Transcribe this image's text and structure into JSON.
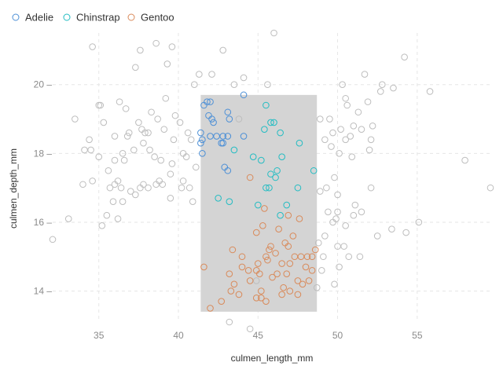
{
  "chart_data": {
    "type": "scatter",
    "xlabel": "culmen_length_mm",
    "ylabel": "culmen_depth_mm",
    "xlim": [
      32.1,
      59.6
    ],
    "ylim": [
      13.1,
      21.5
    ],
    "x_ticks": [
      35,
      40,
      45,
      50,
      55
    ],
    "y_ticks": [
      14,
      16,
      18,
      20
    ],
    "grid": true,
    "legend_placement": "top-left",
    "selection": {
      "x": [
        41.4,
        48.7
      ],
      "y": [
        13.4,
        19.7
      ],
      "color": "#d4d4d4"
    },
    "colors": {
      "Adelie": "#4c8fd6",
      "Chinstrap": "#22bcc2",
      "Gentoo": "#d98a5a",
      "unselected": "#bdbdbd"
    },
    "series": [
      {
        "name": "Adelie",
        "points": [
          [
            41.6,
            19.4
          ],
          [
            41.8,
            19.5
          ],
          [
            42.0,
            19.5
          ],
          [
            41.9,
            19.1
          ],
          [
            42.1,
            19.0
          ],
          [
            42.2,
            18.9
          ],
          [
            42.0,
            18.5
          ],
          [
            41.5,
            18.4
          ],
          [
            41.4,
            18.3
          ],
          [
            42.4,
            18.5
          ],
          [
            42.8,
            18.5
          ],
          [
            43.1,
            18.5
          ],
          [
            43.1,
            19.2
          ],
          [
            43.2,
            19.0
          ],
          [
            41.5,
            18.0
          ],
          [
            41.4,
            18.6
          ],
          [
            42.7,
            18.3
          ],
          [
            44.1,
            18.5
          ],
          [
            43.1,
            17.5
          ],
          [
            42.9,
            17.6
          ],
          [
            44.1,
            19.7
          ],
          [
            42.8,
            18.3
          ]
        ]
      },
      {
        "name": "Chinstrap",
        "points": [
          [
            45.5,
            19.4
          ],
          [
            46.0,
            18.9
          ],
          [
            45.8,
            18.9
          ],
          [
            45.4,
            18.7
          ],
          [
            46.4,
            18.6
          ],
          [
            46.5,
            17.9
          ],
          [
            45.2,
            17.8
          ],
          [
            46.2,
            17.5
          ],
          [
            46.1,
            17.3
          ],
          [
            45.5,
            17.0
          ],
          [
            45.7,
            17.0
          ],
          [
            47.5,
            17.0
          ],
          [
            46.8,
            16.5
          ],
          [
            48.5,
            17.5
          ],
          [
            43.5,
            18.1
          ],
          [
            45.0,
            16.5
          ],
          [
            42.5,
            16.7
          ],
          [
            43.2,
            16.6
          ],
          [
            44.7,
            17.9
          ],
          [
            45.8,
            17.4
          ],
          [
            47.6,
            18.3
          ],
          [
            46.4,
            16.2
          ]
        ]
      },
      {
        "name": "Gentoo",
        "points": [
          [
            41.6,
            14.7
          ],
          [
            42.0,
            13.5
          ],
          [
            42.7,
            13.7
          ],
          [
            43.3,
            14.0
          ],
          [
            43.2,
            14.5
          ],
          [
            43.5,
            14.2
          ],
          [
            44.0,
            14.7
          ],
          [
            44.5,
            14.3
          ],
          [
            44.9,
            13.8
          ],
          [
            45.2,
            13.8
          ],
          [
            45.5,
            13.7
          ],
          [
            45.0,
            14.8
          ],
          [
            45.5,
            15.0
          ],
          [
            45.9,
            14.4
          ],
          [
            46.1,
            15.1
          ],
          [
            46.2,
            14.5
          ],
          [
            46.5,
            14.8
          ],
          [
            46.8,
            14.5
          ],
          [
            47.0,
            14.8
          ],
          [
            47.3,
            15.0
          ],
          [
            47.5,
            14.3
          ],
          [
            47.7,
            15.0
          ],
          [
            48.0,
            14.7
          ],
          [
            48.2,
            14.3
          ],
          [
            48.4,
            15.0
          ],
          [
            43.4,
            15.2
          ],
          [
            44.9,
            15.7
          ],
          [
            45.3,
            15.9
          ],
          [
            45.8,
            15.3
          ],
          [
            46.3,
            15.8
          ],
          [
            46.9,
            15.3
          ],
          [
            47.2,
            15.6
          ],
          [
            47.6,
            16.1
          ],
          [
            48.1,
            15.0
          ],
          [
            48.6,
            15.2
          ],
          [
            44.4,
            14.6
          ],
          [
            45.1,
            14.5
          ],
          [
            46.6,
            14.1
          ],
          [
            47.8,
            14.2
          ],
          [
            43.8,
            13.9
          ],
          [
            44.9,
            14.6
          ],
          [
            45.7,
            15.2
          ],
          [
            46.7,
            15.4
          ],
          [
            45.4,
            16.4
          ],
          [
            46.9,
            16.2
          ],
          [
            44.5,
            17.3
          ],
          [
            47.5,
            13.9
          ],
          [
            48.4,
            14.6
          ],
          [
            45.2,
            14.0
          ],
          [
            46.5,
            13.9
          ],
          [
            44.0,
            15.0
          ],
          [
            47.0,
            14.0
          ],
          [
            45.6,
            14.9
          ]
        ]
      },
      {
        "name": "unselected",
        "points": [
          [
            32.1,
            15.5
          ],
          [
            33.1,
            16.1
          ],
          [
            33.5,
            19.0
          ],
          [
            34.0,
            17.1
          ],
          [
            34.1,
            18.1
          ],
          [
            34.4,
            18.4
          ],
          [
            34.5,
            18.1
          ],
          [
            34.6,
            17.2
          ],
          [
            34.6,
            21.1
          ],
          [
            35.0,
            17.9
          ],
          [
            35.0,
            19.4
          ],
          [
            35.1,
            19.4
          ],
          [
            35.2,
            15.9
          ],
          [
            35.3,
            18.9
          ],
          [
            35.5,
            16.2
          ],
          [
            35.6,
            17.5
          ],
          [
            35.7,
            17.0
          ],
          [
            35.9,
            16.6
          ],
          [
            36.0,
            17.1
          ],
          [
            36.0,
            17.8
          ],
          [
            36.0,
            18.5
          ],
          [
            36.2,
            16.1
          ],
          [
            36.2,
            17.2
          ],
          [
            36.3,
            19.5
          ],
          [
            36.4,
            17.0
          ],
          [
            36.5,
            18.0
          ],
          [
            36.6,
            17.8
          ],
          [
            36.7,
            19.3
          ],
          [
            36.8,
            18.5
          ],
          [
            36.9,
            18.6
          ],
          [
            37.0,
            16.9
          ],
          [
            37.2,
            18.1
          ],
          [
            37.3,
            20.5
          ],
          [
            37.5,
            18.9
          ],
          [
            37.6,
            17.0
          ],
          [
            37.7,
            18.7
          ],
          [
            37.8,
            17.1
          ],
          [
            37.8,
            18.3
          ],
          [
            37.9,
            18.6
          ],
          [
            38.1,
            17.0
          ],
          [
            38.1,
            18.6
          ],
          [
            38.2,
            18.1
          ],
          [
            38.3,
            19.2
          ],
          [
            38.5,
            17.9
          ],
          [
            38.6,
            21.2
          ],
          [
            38.7,
            19.0
          ],
          [
            38.8,
            17.2
          ],
          [
            38.9,
            17.8
          ],
          [
            39.0,
            17.1
          ],
          [
            39.1,
            18.7
          ],
          [
            39.2,
            19.6
          ],
          [
            39.3,
            20.6
          ],
          [
            39.5,
            16.7
          ],
          [
            39.6,
            17.7
          ],
          [
            39.7,
            18.4
          ],
          [
            39.8,
            19.1
          ],
          [
            40.1,
            18.9
          ],
          [
            40.2,
            17.0
          ],
          [
            40.3,
            18.0
          ],
          [
            40.5,
            17.9
          ],
          [
            40.6,
            18.6
          ],
          [
            40.7,
            17.0
          ],
          [
            40.8,
            18.4
          ],
          [
            40.9,
            16.6
          ],
          [
            41.0,
            20.0
          ],
          [
            41.1,
            17.6
          ],
          [
            41.3,
            20.3
          ],
          [
            40.3,
            17.2
          ],
          [
            39.5,
            17.4
          ],
          [
            38.6,
            17.1
          ],
          [
            37.3,
            16.8
          ],
          [
            36.5,
            16.6
          ],
          [
            44.5,
            12.9
          ],
          [
            44.9,
            14.3
          ],
          [
            43.2,
            13.1
          ],
          [
            48.7,
            14.1
          ],
          [
            49.0,
            14.6
          ],
          [
            49.1,
            15.0
          ],
          [
            49.2,
            15.6
          ],
          [
            49.3,
            17.0
          ],
          [
            49.5,
            19.0
          ],
          [
            49.6,
            18.2
          ],
          [
            49.7,
            18.6
          ],
          [
            49.8,
            17.3
          ],
          [
            49.9,
            16.1
          ],
          [
            50.0,
            15.3
          ],
          [
            50.0,
            16.3
          ],
          [
            50.2,
            18.7
          ],
          [
            50.3,
            20.0
          ],
          [
            50.4,
            15.3
          ],
          [
            50.5,
            18.4
          ],
          [
            50.5,
            15.9
          ],
          [
            50.6,
            19.4
          ],
          [
            50.7,
            15.0
          ],
          [
            50.8,
            18.5
          ],
          [
            50.9,
            17.9
          ],
          [
            51.0,
            18.8
          ],
          [
            51.1,
            16.5
          ],
          [
            51.3,
            19.2
          ],
          [
            51.4,
            15.0
          ],
          [
            51.5,
            16.3
          ],
          [
            51.7,
            20.3
          ],
          [
            51.9,
            19.5
          ],
          [
            52.0,
            18.1
          ],
          [
            52.1,
            17.0
          ],
          [
            52.2,
            18.8
          ],
          [
            52.5,
            15.6
          ],
          [
            52.7,
            19.8
          ],
          [
            52.8,
            20.0
          ],
          [
            53.4,
            15.8
          ],
          [
            53.5,
            19.9
          ],
          [
            54.2,
            20.8
          ],
          [
            54.3,
            15.7
          ],
          [
            55.1,
            16.0
          ],
          [
            55.8,
            19.8
          ],
          [
            58.0,
            17.8
          ],
          [
            59.6,
            17.0
          ],
          [
            49.4,
            16.3
          ],
          [
            48.9,
            16.9
          ],
          [
            49.8,
            14.2
          ],
          [
            50.1,
            14.7
          ],
          [
            49.7,
            16.0
          ],
          [
            48.8,
            15.4
          ],
          [
            50.0,
            16.8
          ],
          [
            51.0,
            16.2
          ],
          [
            49.2,
            18.4
          ],
          [
            50.5,
            19.6
          ],
          [
            50.1,
            18.0
          ],
          [
            52.1,
            18.4
          ],
          [
            51.5,
            18.7
          ],
          [
            48.9,
            19.0
          ],
          [
            42.8,
            21.0
          ],
          [
            44.1,
            20.2
          ],
          [
            45.6,
            20.0
          ],
          [
            46.0,
            21.5
          ],
          [
            43.5,
            20.0
          ],
          [
            43.8,
            19.0
          ],
          [
            42.1,
            20.3
          ],
          [
            39.6,
            21.1
          ],
          [
            37.6,
            21.0
          ]
        ]
      }
    ]
  }
}
